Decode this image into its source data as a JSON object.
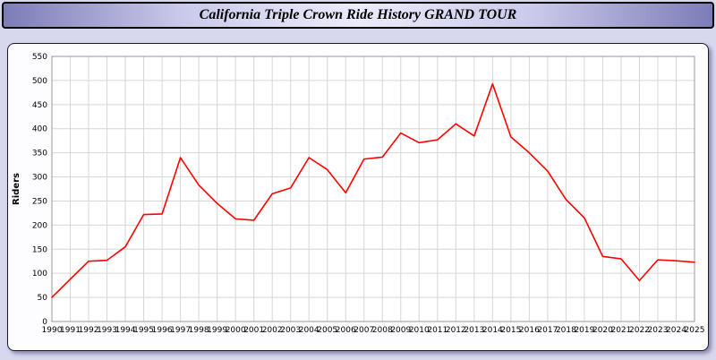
{
  "header": {
    "title": "California Triple Crown Ride History GRAND TOUR"
  },
  "chart_data": {
    "type": "line",
    "title": "California Triple Crown Ride History GRAND TOUR",
    "xlabel": "",
    "ylabel": "Riders",
    "ylim": [
      0,
      550
    ],
    "ytick_interval": 50,
    "grid": true,
    "legend": "none",
    "categories": [
      "1990",
      "1991",
      "1992",
      "1993",
      "1994",
      "1995",
      "1996",
      "1997",
      "1998",
      "1999",
      "2000",
      "2001",
      "2002",
      "2003",
      "2004",
      "2005",
      "2006",
      "2007",
      "2008",
      "2009",
      "2010",
      "2011",
      "2012",
      "2013",
      "2014",
      "2015",
      "2016",
      "2017",
      "2018",
      "2019",
      "2020",
      "2021",
      "2022",
      "2023",
      "2024",
      "2025"
    ],
    "series": [
      {
        "name": "Riders",
        "color": "#ff0000",
        "values": [
          50,
          88,
          125,
          127,
          155,
          222,
          223,
          340,
          283,
          245,
          213,
          210,
          265,
          277,
          340,
          315,
          267,
          337,
          341,
          391,
          371,
          377,
          410,
          385,
          493,
          383,
          350,
          312,
          253,
          215,
          135,
          130,
          85,
          128,
          126,
          123
        ]
      }
    ]
  }
}
